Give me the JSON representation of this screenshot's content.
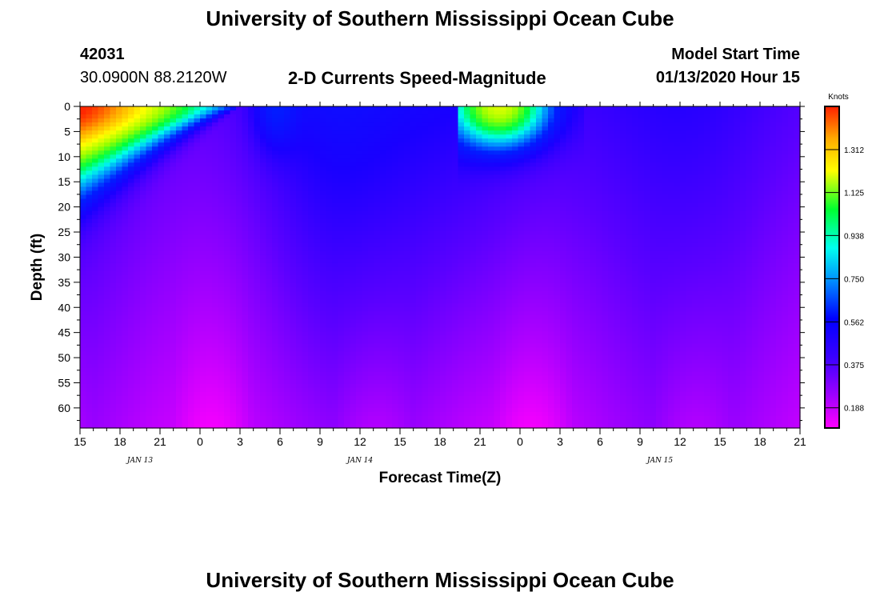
{
  "header": {
    "title": "University of Southern Mississippi Ocean Cube",
    "station_id": "42031",
    "station_coords": "30.0900N 88.2120W",
    "subtitle": "2-D Currents Speed-Magnitude",
    "model_start_label": "Model Start Time",
    "model_start_value": "01/13/2020 Hour 15"
  },
  "footer": {
    "title": "University of Southern Mississippi Ocean Cube"
  },
  "colors": {
    "low": "#ff00ff",
    "mid": "#1a00ff",
    "high": "#ff2200"
  },
  "chart_data": {
    "type": "heatmap",
    "title": "2-D Currents Speed-Magnitude",
    "xlabel": "Forecast Time(Z)",
    "ylabel": "Depth (ft)",
    "x_tick_labels": [
      "15",
      "18",
      "21",
      "0",
      "3",
      "6",
      "9",
      "12",
      "15",
      "18",
      "21",
      "0",
      "3",
      "6",
      "9",
      "12",
      "15",
      "18",
      "21"
    ],
    "x_range_hours": [
      0,
      54
    ],
    "day_labels": [
      {
        "label": "JAN 13",
        "at_hour": 4.5
      },
      {
        "label": "JAN 14",
        "at_hour": 21
      },
      {
        "label": "JAN 15",
        "at_hour": 43.5
      }
    ],
    "y_ticks": [
      0,
      5,
      10,
      15,
      20,
      25,
      30,
      35,
      40,
      45,
      50,
      55,
      60
    ],
    "ylim": [
      0,
      64
    ],
    "y_inverted": true,
    "colorbar": {
      "title": "Knots",
      "tick_labels": [
        "1.312",
        "1.125",
        "0.938",
        "0.750",
        "0.562",
        "0.375",
        "0.188"
      ],
      "tick_values": [
        1.312,
        1.125,
        0.938,
        0.75,
        0.562,
        0.375,
        0.188
      ],
      "range": [
        0.1,
        1.5
      ]
    },
    "features": [
      {
        "description_hours": [
          0,
          13
        ],
        "surface_speed_max": 1.45,
        "max_depth_ft": 14
      },
      {
        "description_hours": [
          28.5,
          38
        ],
        "surface_speed_max": 1.0,
        "max_depth_ft": 10
      }
    ]
  }
}
